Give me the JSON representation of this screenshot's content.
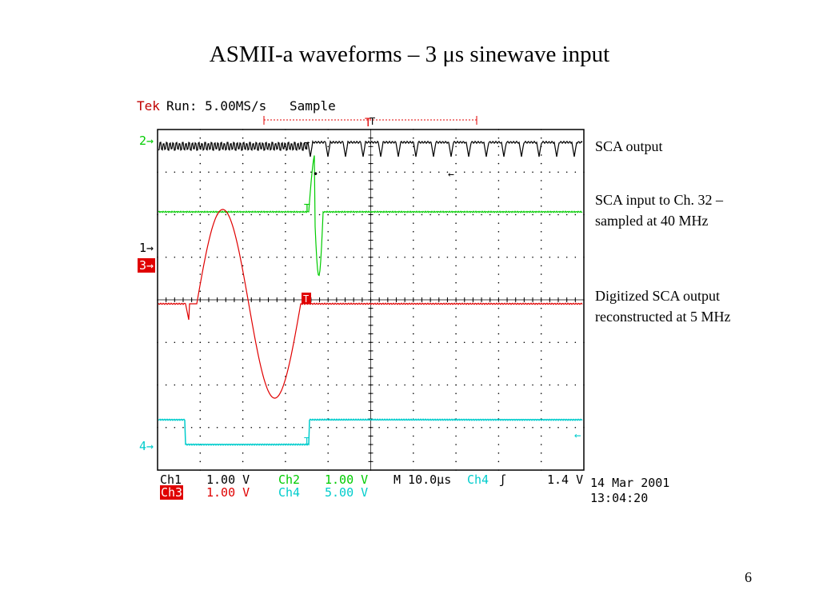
{
  "slide": {
    "title": "ASMII-a waveforms – 3 μs sinewave input",
    "page_number": "6"
  },
  "scope": {
    "brand": "Tek",
    "run": "Run: 5.00MS/s",
    "mode": "Sample",
    "channels": [
      {
        "label": "Ch1",
        "scale": "1.00 V",
        "color": "#000000"
      },
      {
        "label": "Ch2",
        "scale": "1.00 V",
        "color": "#00cc00"
      },
      {
        "label": "Ch3",
        "scale": "1.00 V",
        "color": "#e00000"
      },
      {
        "label": "Ch4",
        "scale": "5.00 V",
        "color": "#00cccc"
      }
    ],
    "timebase": "M 10.0μs",
    "trigger_channel": "Ch4",
    "trigger_symbol": "ʃ",
    "trigger_level": "1.4 V",
    "date": "14 Mar 2001",
    "time": "13:04:20",
    "markers": {
      "m2": "2",
      "m1": "1",
      "m3": "3",
      "m4": "4"
    }
  },
  "annotations": {
    "sca_output": "SCA output",
    "sca_input_line1": "SCA input to Ch. 32 –",
    "sca_input_line2": "sampled at 40 MHz",
    "digitized_line1": "Digitized SCA output",
    "digitized_line2": "reconstructed at 5 MHz"
  }
}
